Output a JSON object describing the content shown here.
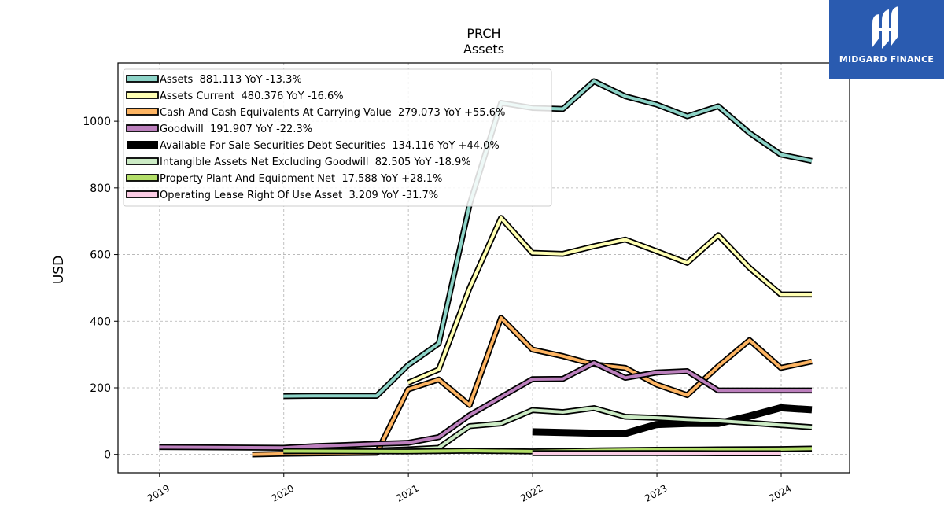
{
  "brand": {
    "name": "MIDGARD FINANCE",
    "color": "#2a5bb0"
  },
  "chart_data": {
    "type": "line",
    "title": "PRCH",
    "subtitle": "Assets",
    "ylabel": "USD",
    "xlabel": "",
    "ylim": [
      -55,
      1175
    ],
    "xlim": [
      "2018-09-01",
      "2024-07-20"
    ],
    "x_ticks": [
      "2019",
      "2020",
      "2021",
      "2022",
      "2023",
      "2024"
    ],
    "y_ticks": [
      0,
      200,
      400,
      600,
      800,
      1000
    ],
    "grid": true,
    "legend_position": "top-left",
    "series": [
      {
        "name": "Assets  881.113 YoY -13.3%",
        "color": "#8dd3c7",
        "linewidth": 4,
        "points": [
          [
            "2019-12-31",
            175
          ],
          [
            "2020-03-31",
            176
          ],
          [
            "2020-06-30",
            176
          ],
          [
            "2020-09-30",
            176
          ],
          [
            "2020-12-31",
            268
          ],
          [
            "2021-03-31",
            333
          ],
          [
            "2021-06-30",
            750
          ],
          [
            "2021-09-30",
            1055
          ],
          [
            "2021-12-31",
            1040
          ],
          [
            "2022-03-31",
            1037
          ],
          [
            "2022-06-30",
            1120
          ],
          [
            "2022-09-30",
            1075
          ],
          [
            "2022-12-31",
            1050
          ],
          [
            "2023-03-31",
            1015
          ],
          [
            "2023-06-30",
            1045
          ],
          [
            "2023-09-30",
            965
          ],
          [
            "2023-12-31",
            900
          ],
          [
            "2024-03-31",
            881
          ]
        ]
      },
      {
        "name": "Assets Current  480.376 YoY -16.6%",
        "color": "#ffffb3",
        "linewidth": 4,
        "points": [
          [
            "2020-12-31",
            215
          ],
          [
            "2021-03-31",
            255
          ],
          [
            "2021-06-30",
            500
          ],
          [
            "2021-09-30",
            710
          ],
          [
            "2021-12-31",
            605
          ],
          [
            "2022-03-31",
            602
          ],
          [
            "2022-06-30",
            625
          ],
          [
            "2022-09-30",
            645
          ],
          [
            "2022-12-31",
            610
          ],
          [
            "2023-03-31",
            575
          ],
          [
            "2023-06-30",
            658
          ],
          [
            "2023-09-30",
            560
          ],
          [
            "2023-12-31",
            480
          ],
          [
            "2024-03-31",
            480
          ]
        ]
      },
      {
        "name": "Cash And Cash Equivalents At Carrying Value  279.073 YoY +55.6%",
        "color": "#fdb462",
        "linewidth": 4,
        "points": [
          [
            "2019-09-30",
            0
          ],
          [
            "2019-12-31",
            2
          ],
          [
            "2020-03-31",
            3
          ],
          [
            "2020-06-30",
            4
          ],
          [
            "2020-09-30",
            5
          ],
          [
            "2020-12-31",
            195
          ],
          [
            "2021-03-31",
            225
          ],
          [
            "2021-06-30",
            148
          ],
          [
            "2021-09-30",
            410
          ],
          [
            "2021-12-31",
            315
          ],
          [
            "2022-03-31",
            295
          ],
          [
            "2022-06-30",
            270
          ],
          [
            "2022-09-30",
            260
          ],
          [
            "2022-12-31",
            210
          ],
          [
            "2023-03-31",
            178
          ],
          [
            "2023-06-30",
            265
          ],
          [
            "2023-09-30",
            343
          ],
          [
            "2023-12-31",
            260
          ],
          [
            "2024-03-31",
            279
          ]
        ]
      },
      {
        "name": "Goodwill  191.907 YoY -22.3%",
        "color": "#bc80bd",
        "linewidth": 4,
        "points": [
          [
            "2018-12-31",
            22
          ],
          [
            "2019-12-31",
            20
          ],
          [
            "2020-03-31",
            25
          ],
          [
            "2020-06-30",
            28
          ],
          [
            "2020-09-30",
            32
          ],
          [
            "2020-12-31",
            35
          ],
          [
            "2021-03-31",
            52
          ],
          [
            "2021-06-30",
            118
          ],
          [
            "2021-09-30",
            172
          ],
          [
            "2021-12-31",
            226
          ],
          [
            "2022-03-31",
            227
          ],
          [
            "2022-06-30",
            275
          ],
          [
            "2022-09-30",
            230
          ],
          [
            "2022-12-31",
            246
          ],
          [
            "2023-03-31",
            250
          ],
          [
            "2023-06-30",
            192
          ],
          [
            "2023-09-30",
            192
          ],
          [
            "2023-12-31",
            192
          ],
          [
            "2024-03-31",
            192
          ]
        ]
      },
      {
        "name": "Available For Sale Securities Debt Securities  134.116 YoY +44.0%",
        "color": "#000000",
        "linewidth": 9,
        "points": [
          [
            "2021-12-31",
            68
          ],
          [
            "2022-03-31",
            66
          ],
          [
            "2022-06-30",
            64
          ],
          [
            "2022-09-30",
            63
          ],
          [
            "2022-12-31",
            90
          ],
          [
            "2023-03-31",
            93
          ],
          [
            "2023-06-30",
            93
          ],
          [
            "2023-09-30",
            115
          ],
          [
            "2023-12-31",
            140
          ],
          [
            "2024-03-31",
            134
          ]
        ]
      },
      {
        "name": "Intangible Assets Net Excluding Goodwill  82.505 YoY -18.9%",
        "color": "#ccebc5",
        "linewidth": 4,
        "points": [
          [
            "2019-12-31",
            10
          ],
          [
            "2020-03-31",
            11
          ],
          [
            "2020-06-30",
            11
          ],
          [
            "2020-09-30",
            12
          ],
          [
            "2020-12-31",
            15
          ],
          [
            "2021-03-31",
            20
          ],
          [
            "2021-06-30",
            85
          ],
          [
            "2021-09-30",
            93
          ],
          [
            "2021-12-31",
            133
          ],
          [
            "2022-03-31",
            127
          ],
          [
            "2022-06-30",
            139
          ],
          [
            "2022-09-30",
            113
          ],
          [
            "2022-12-31",
            110
          ],
          [
            "2023-03-31",
            105
          ],
          [
            "2023-06-30",
            101
          ],
          [
            "2023-09-30",
            95
          ],
          [
            "2023-12-31",
            88
          ],
          [
            "2024-03-31",
            82
          ]
        ]
      },
      {
        "name": "Property Plant And Equipment Net  17.588 YoY +28.1%",
        "color": "#b3de69",
        "linewidth": 4,
        "points": [
          [
            "2019-12-31",
            10
          ],
          [
            "2020-12-31",
            9
          ],
          [
            "2021-06-30",
            11
          ],
          [
            "2021-12-31",
            9
          ],
          [
            "2022-06-30",
            12
          ],
          [
            "2022-12-31",
            14
          ],
          [
            "2023-06-30",
            15
          ],
          [
            "2023-12-31",
            16
          ],
          [
            "2024-03-31",
            17.6
          ]
        ]
      },
      {
        "name": "Operating Lease Right Of Use Asset  3.209 YoY -31.7%",
        "color": "#fccde5",
        "linewidth": 4,
        "points": [
          [
            "2021-12-31",
            4
          ],
          [
            "2022-06-30",
            4
          ],
          [
            "2022-12-31",
            4
          ],
          [
            "2023-06-30",
            3.5
          ],
          [
            "2023-12-31",
            3.2
          ]
        ]
      }
    ]
  }
}
